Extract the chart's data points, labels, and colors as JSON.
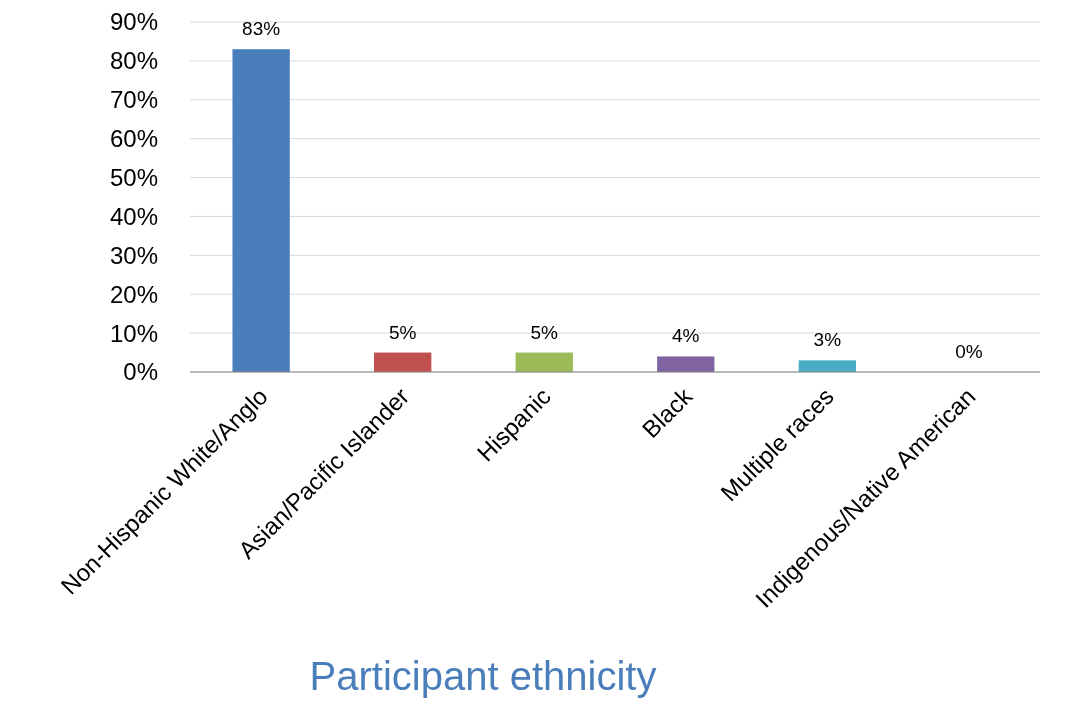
{
  "chart_data": {
    "type": "bar",
    "xlabel": "Participant ethnicity",
    "categories": [
      "Non-Hispanic White/Anglo",
      "Asian/Pacific Islander",
      "Hispanic",
      "Black",
      "Multiple races",
      "Indigenous/Native American"
    ],
    "values": [
      83,
      5,
      5,
      4,
      3,
      0
    ],
    "colors": [
      "#4a7ebb",
      "#c0504d",
      "#9bbb59",
      "#8064a2",
      "#4bacc6",
      "#f79646"
    ],
    "value_labels": [
      "83%",
      "5%",
      "5%",
      "4%",
      "3%",
      "0%"
    ],
    "ylim": [
      0,
      90
    ],
    "yticks": [
      {
        "value": 0,
        "label": "0%"
      },
      {
        "value": 10,
        "label": "10%"
      },
      {
        "value": 20,
        "label": "20%"
      },
      {
        "value": 30,
        "label": "30%"
      },
      {
        "value": 40,
        "label": "40%"
      },
      {
        "value": 50,
        "label": "50%"
      },
      {
        "value": 60,
        "label": "60%"
      },
      {
        "value": 70,
        "label": "70%"
      },
      {
        "value": 80,
        "label": "80%"
      },
      {
        "value": 90,
        "label": "90%"
      }
    ],
    "grid": "y"
  }
}
